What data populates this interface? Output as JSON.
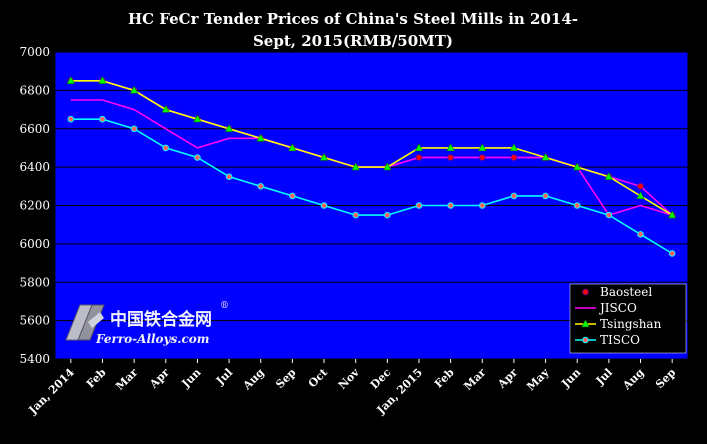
{
  "chart_data": {
    "type": "line",
    "title_line1": "HC FeCr Tender Prices of China's Steel Mills in 2014-",
    "title_line2": "Sept, 2015(RMB/50MT)",
    "ylim": [
      5400,
      7000
    ],
    "yticks": [
      "5400",
      "5600",
      "5800",
      "6000",
      "6200",
      "6400",
      "6600",
      "6800",
      "7000"
    ],
    "categories": [
      "Jan, 2014",
      "Feb",
      "Mar",
      "Apr",
      "Jun",
      "Jul",
      "Aug",
      "Sep",
      "Oct",
      "Nov",
      "Dec",
      "Jan, 2015",
      "Feb",
      "Mar",
      "Apr",
      "May",
      "Jun",
      "Jul",
      "Aug",
      "Sep"
    ],
    "grid": true,
    "legend_position": "bottom-right",
    "plot_background": "#0000ff",
    "series": [
      {
        "name": "Baosteel",
        "color": "#ff00ff",
        "marker": "circle",
        "values": [
          6850,
          6850,
          6800,
          6700,
          6650,
          6600,
          6550,
          6500,
          6450,
          6400,
          6400,
          6450,
          6450,
          6450,
          6450,
          6450,
          6400,
          6350,
          6300,
          6150
        ]
      },
      {
        "name": "JISCO",
        "color": "#ff00ff",
        "marker": "none",
        "values": [
          6750,
          6750,
          6700,
          6600,
          6500,
          6550,
          6550,
          6500,
          6450,
          6400,
          6400,
          6450,
          6450,
          6450,
          6450,
          6450,
          6400,
          6150,
          6200,
          6150
        ]
      },
      {
        "name": "Tsingshan",
        "color": "#ffff00",
        "marker": "triangle",
        "values": [
          6850,
          6850,
          6800,
          6700,
          6650,
          6600,
          6550,
          6500,
          6450,
          6400,
          6400,
          6500,
          6500,
          6500,
          6500,
          6450,
          6400,
          6350,
          6250,
          6150
        ]
      },
      {
        "name": "TISCO",
        "color": "#00ffff",
        "marker": "circle",
        "values": [
          6650,
          6650,
          6600,
          6500,
          6450,
          6350,
          6300,
          6250,
          6200,
          6150,
          6150,
          6200,
          6200,
          6200,
          6250,
          6250,
          6200,
          6150,
          6050,
          5950
        ]
      }
    ]
  },
  "watermark": {
    "cn": "中国铁合金网",
    "en": "Ferro-Alloys.com",
    "registered": "®"
  }
}
